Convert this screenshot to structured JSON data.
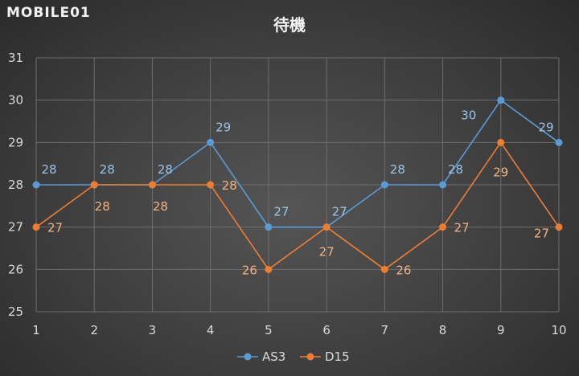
{
  "logo": "MOBILE01",
  "chart_data": {
    "type": "line",
    "title": "待機",
    "x": [
      1,
      2,
      3,
      4,
      5,
      6,
      7,
      8,
      9,
      10
    ],
    "ylim": [
      25,
      31
    ],
    "yticks": [
      25,
      26,
      27,
      28,
      29,
      30,
      31
    ],
    "grid": true,
    "legend": "bottom",
    "series": [
      {
        "name": "AS3",
        "color": "#5b9bd5",
        "label_color": "#9dc3e6",
        "values": [
          28,
          28,
          28,
          29,
          27,
          27,
          28,
          28,
          30,
          29
        ]
      },
      {
        "name": "D15",
        "color": "#ed7d31",
        "label_color": "#f4b183",
        "values": [
          27,
          28,
          28,
          28,
          26,
          27,
          26,
          27,
          29,
          27
        ]
      }
    ]
  }
}
